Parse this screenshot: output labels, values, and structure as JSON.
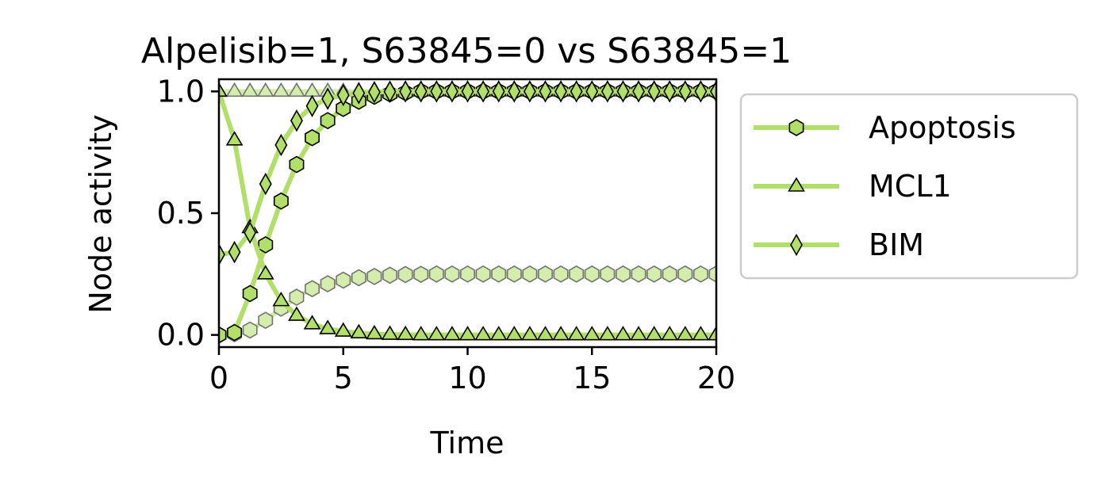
{
  "chart_data": {
    "type": "line",
    "title": "Alpelisib=1, S63845=0 vs S63845=1",
    "xlabel": "Time",
    "ylabel": "Node activity",
    "xlim": [
      0,
      20
    ],
    "ylim": [
      -0.05,
      1.05
    ],
    "xticks": [
      0,
      5,
      10,
      15,
      20
    ],
    "xtick_labels": [
      "0",
      "5",
      "10",
      "15",
      "20"
    ],
    "yticks": [
      0.0,
      0.5,
      1.0
    ],
    "ytick_labels": [
      "0.0",
      "0.5",
      "1.0"
    ],
    "grid": false,
    "legend_position": "outside-right",
    "line_color": "#b2df6a",
    "conditions": [
      "S63845=0 (faded)",
      "S63845=1 (solid)"
    ],
    "x": [
      0,
      0.625,
      1.25,
      1.875,
      2.5,
      3.125,
      3.75,
      4.375,
      5,
      5.625,
      6.25,
      6.875,
      7.5,
      8.125,
      8.75,
      9.375,
      10,
      10.625,
      11.25,
      11.875,
      12.5,
      13.125,
      13.75,
      14.375,
      15,
      15.625,
      16.25,
      16.875,
      17.5,
      18.125,
      18.75,
      19.375,
      20
    ],
    "series": [
      {
        "name": "Apoptosis",
        "marker": "hexagon",
        "faded": [
          0,
          0.005,
          0.02,
          0.06,
          0.11,
          0.155,
          0.19,
          0.21,
          0.225,
          0.235,
          0.24,
          0.245,
          0.248,
          0.249,
          0.25,
          0.25,
          0.25,
          0.25,
          0.25,
          0.25,
          0.25,
          0.25,
          0.25,
          0.25,
          0.25,
          0.25,
          0.25,
          0.25,
          0.25,
          0.25,
          0.25,
          0.25,
          0.25
        ],
        "solid": [
          0,
          0.01,
          0.17,
          0.37,
          0.55,
          0.7,
          0.81,
          0.88,
          0.93,
          0.96,
          0.98,
          0.99,
          0.995,
          1,
          1,
          1,
          1,
          1,
          1,
          1,
          1,
          1,
          1,
          1,
          1,
          1,
          1,
          1,
          1,
          1,
          1,
          1,
          1
        ]
      },
      {
        "name": "MCL1",
        "marker": "triangle",
        "faded": [
          1,
          1,
          1,
          1,
          1,
          1,
          1,
          1,
          1,
          1,
          1,
          1,
          1,
          1,
          1,
          1,
          1,
          1,
          1,
          1,
          1,
          1,
          1,
          1,
          1,
          1,
          1,
          1,
          1,
          1,
          1,
          1,
          1
        ],
        "solid": [
          1,
          0.8,
          0.44,
          0.25,
          0.14,
          0.08,
          0.045,
          0.025,
          0.015,
          0.008,
          0.004,
          0.002,
          0.001,
          0,
          0,
          0,
          0,
          0,
          0,
          0,
          0,
          0,
          0,
          0,
          0,
          0,
          0,
          0,
          0,
          0,
          0,
          0,
          0
        ]
      },
      {
        "name": "BIM",
        "marker": "diamond",
        "faded": [
          0.33,
          0.34,
          0.42,
          0.62,
          0.78,
          0.88,
          0.94,
          0.97,
          0.985,
          0.993,
          0.997,
          0.999,
          1,
          1,
          1,
          1,
          1,
          1,
          1,
          1,
          1,
          1,
          1,
          1,
          1,
          1,
          1,
          1,
          1,
          1,
          1,
          1,
          1
        ],
        "solid": [
          0.33,
          0.34,
          0.42,
          0.62,
          0.78,
          0.88,
          0.94,
          0.97,
          0.985,
          0.993,
          0.997,
          0.999,
          1,
          1,
          1,
          1,
          1,
          1,
          1,
          1,
          1,
          1,
          1,
          1,
          1,
          1,
          1,
          1,
          1,
          1,
          1,
          1,
          1
        ]
      }
    ]
  }
}
